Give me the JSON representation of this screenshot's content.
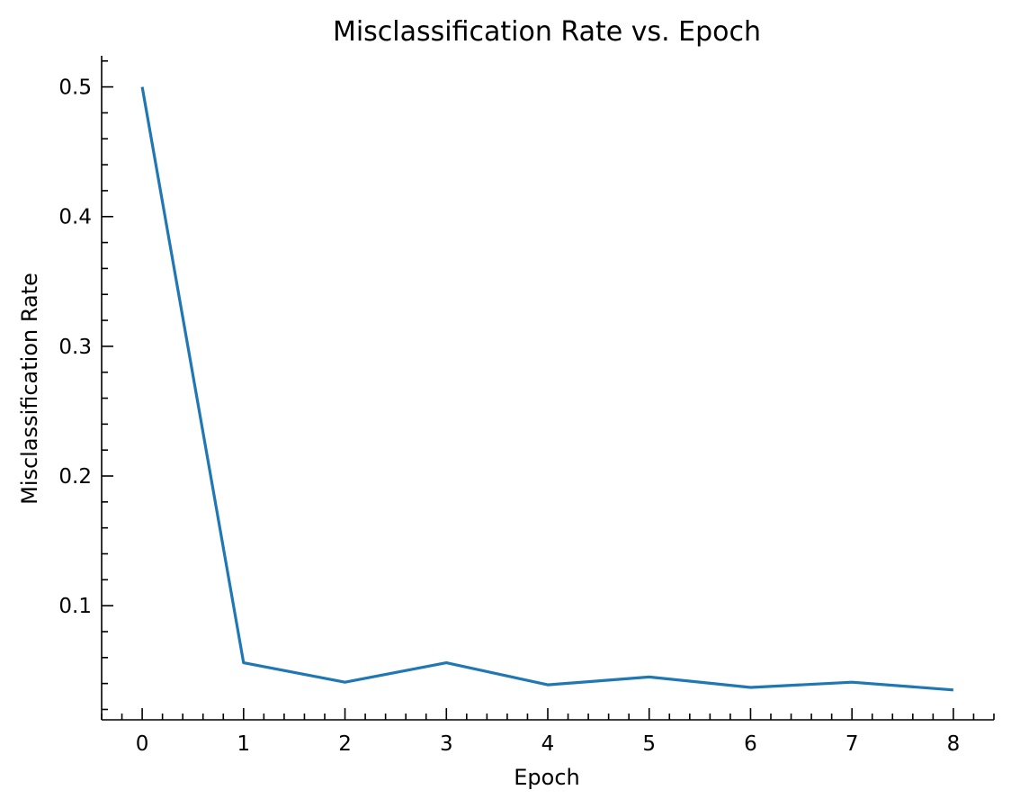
{
  "chart_data": {
    "type": "line",
    "title": "Misclassification Rate vs. Epoch",
    "xlabel": "Epoch",
    "ylabel": "Misclassification Rate",
    "xlim": [
      -0.4,
      8.4
    ],
    "ylim": [
      0.012,
      0.524
    ],
    "x_ticks": [
      0,
      1,
      2,
      3,
      4,
      5,
      6,
      7,
      8
    ],
    "x_minor_step": 0.2,
    "y_ticks": [
      0.1,
      0.2,
      0.3,
      0.4,
      0.5
    ],
    "y_tick_labels": [
      "0.1",
      "0.2",
      "0.3",
      "0.4",
      "0.5"
    ],
    "y_minor_step": 0.02,
    "grid": false,
    "color": "#1f77b4",
    "x": [
      0,
      1,
      2,
      3,
      4,
      5,
      6,
      7,
      8
    ],
    "values": [
      0.5,
      0.056,
      0.041,
      0.056,
      0.039,
      0.045,
      0.037,
      0.041,
      0.035
    ]
  }
}
